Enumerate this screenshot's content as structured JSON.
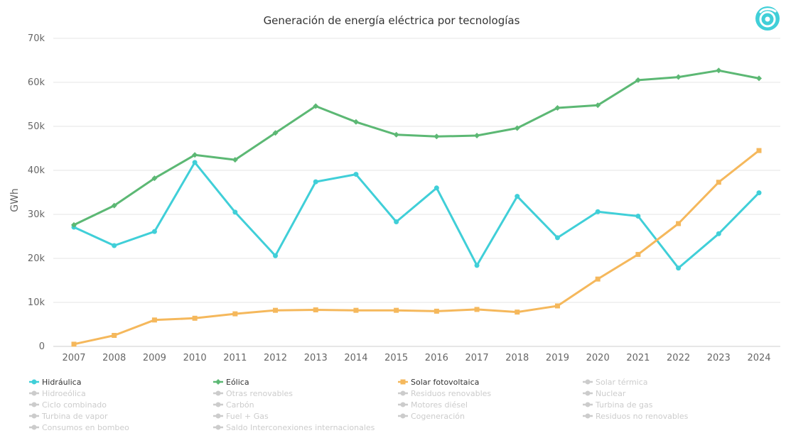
{
  "chart_data": {
    "type": "line",
    "title": "Generación de energía eléctrica por tecnologías",
    "ylabel": "GWh",
    "xlabel": "",
    "ylim": [
      0,
      70000
    ],
    "yticks": [
      0,
      10000,
      20000,
      30000,
      40000,
      50000,
      60000,
      70000
    ],
    "ytick_labels": [
      "0",
      "10k",
      "20k",
      "30k",
      "40k",
      "50k",
      "60k",
      "70k"
    ],
    "categories": [
      "2007",
      "2008",
      "2009",
      "2010",
      "2011",
      "2012",
      "2013",
      "2014",
      "2015",
      "2016",
      "2017",
      "2018",
      "2019",
      "2020",
      "2021",
      "2022",
      "2023",
      "2024"
    ],
    "grid": true,
    "legend_position": "bottom",
    "series": [
      {
        "name": "Hidráulica",
        "color": "#40cfd8",
        "marker": "circle",
        "values": [
          27100,
          22900,
          26100,
          41800,
          30500,
          20600,
          37400,
          39100,
          28300,
          36000,
          18400,
          34100,
          24700,
          30600,
          29600,
          17800,
          25600,
          34900
        ]
      },
      {
        "name": "Eólica",
        "color": "#5cb874",
        "marker": "diamond",
        "values": [
          27600,
          32000,
          38200,
          43500,
          42400,
          48500,
          54600,
          51000,
          48100,
          47700,
          47900,
          49600,
          54200,
          54800,
          60500,
          61200,
          62700,
          60900
        ]
      },
      {
        "name": "Solar fotovoltaica",
        "color": "#f5b85c",
        "marker": "square",
        "values": [
          500,
          2500,
          6000,
          6400,
          7400,
          8200,
          8300,
          8200,
          8200,
          8000,
          8400,
          7800,
          9200,
          15300,
          20900,
          27900,
          37300,
          44500
        ]
      }
    ],
    "inactive_legend": [
      "Solar térmica",
      "Hidroeólica",
      "Otras renovables",
      "Residuos renovables",
      "Nuclear",
      "Ciclo combinado",
      "Carbón",
      "Motores diésel",
      "Turbina de gas",
      "Turbina de vapor",
      "Fuel + Gas",
      "Cogeneración",
      "Residuos no renovables",
      "Consumos en bombeo",
      "Saldo Interconexiones internacionales"
    ],
    "inactive_color": "#cccccc",
    "active_text_color": "#333333"
  },
  "logo": {
    "icon": "ree-logo-icon",
    "color": "#40cfd8"
  }
}
